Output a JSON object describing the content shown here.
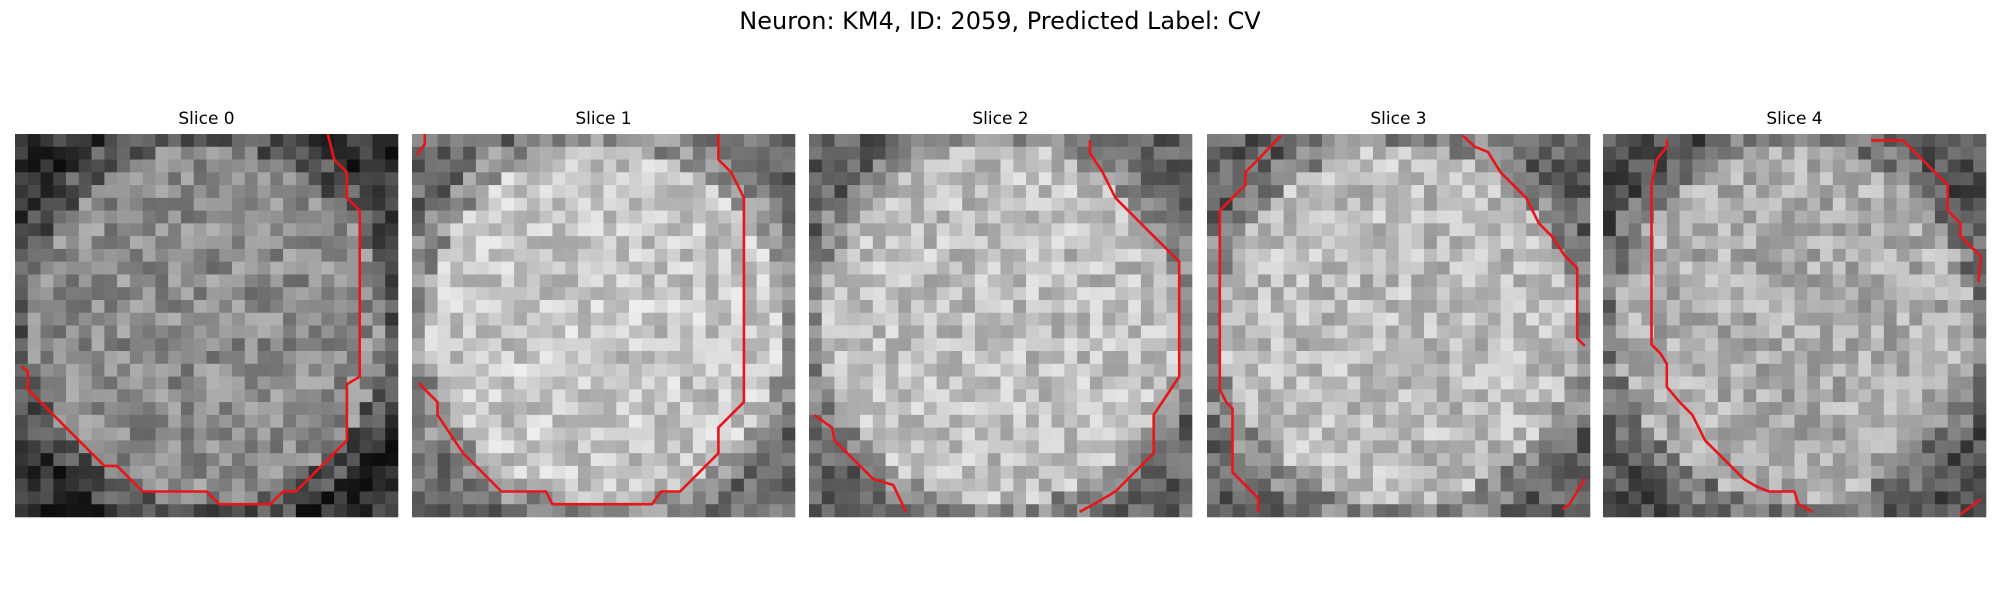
{
  "title": "Neuron: KM4, ID: 2059, Predicted Label: CV",
  "panels": [
    {
      "title": "Slice 0"
    },
    {
      "title": "Slice 1"
    },
    {
      "title": "Slice 2"
    },
    {
      "title": "Slice 3"
    },
    {
      "title": "Slice 4"
    }
  ]
}
